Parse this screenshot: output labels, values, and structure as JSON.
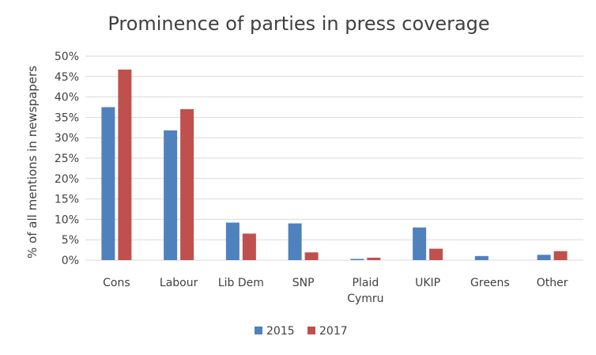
{
  "chart_data": {
    "type": "bar",
    "title": "Prominence of parties in press coverage",
    "ylabel": "% of all mentions in newspapers",
    "xlabel": "",
    "categories": [
      "Cons",
      "Labour",
      "Lib Dem",
      "SNP",
      "Plaid Cymru",
      "UKIP",
      "Greens",
      "Other"
    ],
    "y_ticks": [
      "0%",
      "5%",
      "10%",
      "15%",
      "20%",
      "25%",
      "30%",
      "35%",
      "40%",
      "45%",
      "50%"
    ],
    "ylim": [
      0,
      50
    ],
    "grid": true,
    "legend_position": "bottom",
    "series": [
      {
        "name": "2015",
        "color": "#4f81bd",
        "values": [
          37.5,
          31.8,
          9.2,
          9.0,
          0.3,
          8.0,
          1.0,
          1.3
        ]
      },
      {
        "name": "2017",
        "color": "#c0504d",
        "values": [
          46.7,
          37.0,
          6.5,
          1.9,
          0.6,
          2.8,
          0.0,
          2.2
        ]
      }
    ]
  }
}
